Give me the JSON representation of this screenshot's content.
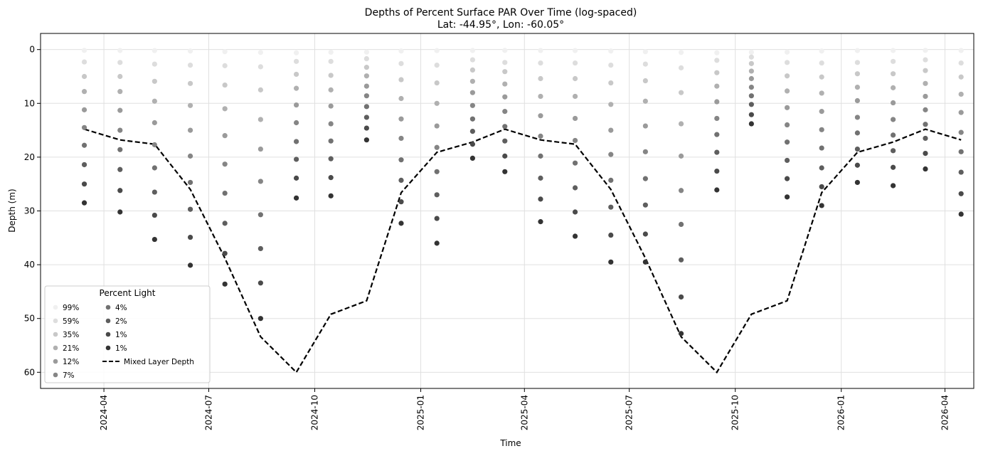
{
  "chart_data": {
    "type": "scatter",
    "title": "Depths of Percent Surface PAR Over Time (log-spaced)",
    "subtitle": "Lat: -44.95°, Lon: -60.05°",
    "xlabel": "Time",
    "ylabel": "Depth (m)",
    "y_inverted": true,
    "ylim": [
      63,
      -3
    ],
    "xlim": [
      "2024-02-06",
      "2026-04-26"
    ],
    "grid": true,
    "x_ticks": [
      "2024-04",
      "2024-07",
      "2024-10",
      "2025-01",
      "2025-04",
      "2025-07",
      "2025-10",
      "2026-01",
      "2026-04"
    ],
    "y_ticks": [
      0,
      10,
      20,
      30,
      40,
      50,
      60
    ],
    "x": [
      "2024-03-15",
      "2024-04-15",
      "2024-05-15",
      "2024-06-15",
      "2024-07-15",
      "2024-08-15",
      "2024-09-15",
      "2024-10-15",
      "2024-11-15",
      "2024-12-15",
      "2025-01-15",
      "2025-02-15",
      "2025-03-15",
      "2025-04-15",
      "2025-05-15",
      "2025-06-15",
      "2025-07-15",
      "2025-08-15",
      "2025-09-15",
      "2025-10-15",
      "2025-11-15",
      "2025-12-15",
      "2026-01-15",
      "2026-02-15",
      "2026-03-15",
      "2026-04-15"
    ],
    "series": [
      {
        "name": "99%",
        "color": "#f0f0f0",
        "values": [
          0.15,
          0.17,
          0.18,
          0.27,
          0.4,
          0.54,
          0.6,
          0.5,
          0.47,
          0.27,
          0.19,
          0.17,
          0.15,
          0.17,
          0.18,
          0.27,
          0.4,
          0.54,
          0.6,
          0.5,
          0.47,
          0.27,
          0.19,
          0.17,
          0.15,
          0.17
        ]
      },
      {
        "name": "59%",
        "color": "#dddddd",
        "values": [
          2.3,
          2.4,
          2.7,
          2.9,
          3.0,
          3.2,
          2.2,
          2.2,
          1.7,
          2.6,
          2.9,
          1.9,
          2.4,
          2.5,
          2.5,
          2.9,
          2.7,
          3.4,
          2.0,
          1.4,
          2.4,
          2.5,
          2.4,
          2.2,
          1.9,
          2.5
        ]
      },
      {
        "name": "35%",
        "color": "#c8c8c8",
        "values": [
          5.0,
          5.0,
          5.9,
          6.3,
          6.6,
          7.5,
          4.6,
          4.8,
          3.3,
          5.6,
          6.2,
          3.8,
          4.1,
          5.4,
          5.4,
          6.2,
          5.8,
          8.0,
          4.3,
          2.6,
          4.9,
          5.1,
          4.5,
          4.5,
          3.9,
          5.1
        ]
      },
      {
        "name": "21%",
        "color": "#b0b0b0",
        "values": [
          7.8,
          7.8,
          9.6,
          10.4,
          11.0,
          13.0,
          7.2,
          7.5,
          4.9,
          9.1,
          10.0,
          5.9,
          6.4,
          8.7,
          8.7,
          10.2,
          9.6,
          13.8,
          6.8,
          4.0,
          7.7,
          8.1,
          7.0,
          7.1,
          6.3,
          8.3
        ]
      },
      {
        "name": "12%",
        "color": "#9a9a9a",
        "values": [
          11.2,
          11.3,
          13.6,
          15.0,
          16.0,
          18.5,
          10.3,
          10.5,
          6.8,
          12.9,
          14.2,
          8.0,
          8.8,
          12.3,
          12.8,
          15.0,
          14.2,
          19.8,
          9.7,
          5.4,
          10.8,
          11.5,
          9.5,
          9.9,
          8.7,
          11.7
        ]
      },
      {
        "name": "7%",
        "color": "#858585",
        "values": [
          14.5,
          15.0,
          17.7,
          19.8,
          21.3,
          24.5,
          13.6,
          13.8,
          8.6,
          16.5,
          18.2,
          10.4,
          11.5,
          16.1,
          16.9,
          19.5,
          19.0,
          26.2,
          12.8,
          7.0,
          14.0,
          14.9,
          12.6,
          13.0,
          11.2,
          15.4
        ]
      },
      {
        "name": "4%",
        "color": "#717171",
        "values": [
          17.8,
          18.6,
          22.0,
          24.7,
          26.7,
          30.7,
          17.1,
          17.0,
          10.6,
          20.5,
          22.7,
          12.9,
          14.3,
          19.8,
          21.1,
          24.3,
          24.0,
          32.5,
          15.8,
          8.6,
          17.2,
          18.3,
          15.5,
          15.9,
          13.9,
          19.0
        ]
      },
      {
        "name": "2%",
        "color": "#5e5e5e",
        "values": [
          21.4,
          22.3,
          26.5,
          29.7,
          32.3,
          37.0,
          20.4,
          20.3,
          12.6,
          24.3,
          27.0,
          15.2,
          17.0,
          23.9,
          25.7,
          29.3,
          28.9,
          39.1,
          19.1,
          10.2,
          20.6,
          22.0,
          18.5,
          18.8,
          16.5,
          22.8
        ]
      },
      {
        "name": "1%",
        "color": "#4a4a4a",
        "values": [
          25.0,
          26.2,
          30.8,
          34.9,
          37.9,
          43.4,
          23.9,
          23.8,
          14.6,
          28.3,
          31.4,
          17.6,
          19.8,
          27.8,
          30.2,
          34.5,
          34.3,
          46.0,
          22.6,
          12.1,
          24.0,
          25.5,
          21.5,
          21.9,
          19.3,
          26.8
        ]
      },
      {
        "name": "1%",
        "color": "#333333",
        "values": [
          28.5,
          30.2,
          35.3,
          40.1,
          43.6,
          50.0,
          27.6,
          27.2,
          16.8,
          32.3,
          36.0,
          20.2,
          22.7,
          32.0,
          34.7,
          39.5,
          39.5,
          52.8,
          26.1,
          13.8,
          27.4,
          29.0,
          24.7,
          25.3,
          22.2,
          30.6
        ]
      }
    ],
    "line": {
      "name": "Mixed Layer Depth",
      "color": "#000000",
      "values": [
        14.8,
        16.8,
        17.6,
        26.0,
        38.8,
        53.4,
        60.0,
        49.2,
        46.7,
        26.6,
        19.1,
        17.2,
        14.8,
        16.8,
        17.6,
        26.0,
        38.8,
        53.4,
        60.0,
        49.2,
        46.7,
        26.6,
        19.1,
        17.2,
        14.8,
        16.8
      ]
    },
    "legend": {
      "title": "Percent Light",
      "placement": "lower-left"
    }
  }
}
